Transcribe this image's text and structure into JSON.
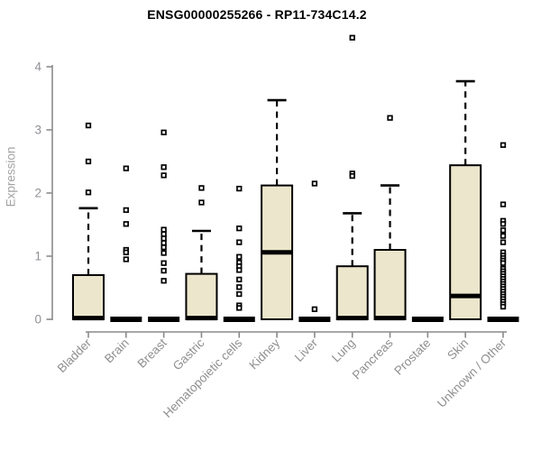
{
  "window": {
    "title": "ENSG00000255266 - RP11-734C14.2"
  },
  "chart_data": {
    "type": "boxplot",
    "title": "ENSG00000255266 - RP11-734C14.2",
    "xlabel": "",
    "ylabel": "Expression",
    "ylim": [
      0,
      4.6
    ],
    "yticks": [
      0,
      1,
      2,
      3,
      4
    ],
    "grid": false,
    "legend": "none",
    "categories": [
      "Bladder",
      "Brain",
      "Breast",
      "Gastric",
      "Hematopoietic cells",
      "Kidney",
      "Liver",
      "Lung",
      "Pancreas",
      "Prostate",
      "Skin",
      "Unknown / Other"
    ],
    "series": [
      {
        "name": "Bladder",
        "q1": 0,
        "median": 0.02,
        "q3": 0.7,
        "whisker_low": 0,
        "whisker_high": 1.76,
        "outliers": [
          2.01,
          2.5,
          3.07
        ]
      },
      {
        "name": "Brain",
        "q1": 0,
        "median": 0,
        "q3": 0,
        "whisker_low": 0,
        "whisker_high": 0,
        "outliers": [
          2.39,
          1.73,
          1.51,
          1.1,
          1.06,
          0.95
        ]
      },
      {
        "name": "Breast",
        "q1": 0,
        "median": 0,
        "q3": 0,
        "whisker_low": 0,
        "whisker_high": 0,
        "outliers": [
          2.96,
          2.41,
          2.28,
          1.42,
          1.35,
          1.28,
          1.21,
          1.14,
          1.05,
          0.89,
          0.77,
          0.61
        ]
      },
      {
        "name": "Gastric",
        "q1": 0,
        "median": 0.02,
        "q3": 0.72,
        "whisker_low": 0,
        "whisker_high": 1.4,
        "outliers": [
          2.08,
          1.85
        ]
      },
      {
        "name": "Hematopoietic cells",
        "q1": 0,
        "median": 0,
        "q3": 0,
        "whisker_low": 0,
        "whisker_high": 0,
        "outliers": [
          2.07,
          1.44,
          1.22,
          0.99,
          0.9,
          0.84,
          0.78,
          0.63,
          0.51,
          0.4,
          0.22,
          0.18
        ]
      },
      {
        "name": "Kidney",
        "q1": 0,
        "median": 1.06,
        "q3": 2.12,
        "whisker_low": 0,
        "whisker_high": 3.47,
        "outliers": []
      },
      {
        "name": "Liver",
        "q1": 0,
        "median": 0,
        "q3": 0,
        "whisker_low": 0,
        "whisker_high": 0,
        "outliers": [
          2.15,
          0.16
        ]
      },
      {
        "name": "Lung",
        "q1": 0,
        "median": 0.02,
        "q3": 0.84,
        "whisker_low": 0,
        "whisker_high": 1.68,
        "outliers": [
          4.46,
          2.31,
          2.27
        ]
      },
      {
        "name": "Pancreas",
        "q1": 0,
        "median": 0.02,
        "q3": 1.1,
        "whisker_low": 0,
        "whisker_high": 2.12,
        "outliers": [
          3.19
        ]
      },
      {
        "name": "Prostate",
        "q1": 0,
        "median": 0,
        "q3": 0,
        "whisker_low": 0,
        "whisker_high": 0,
        "outliers": []
      },
      {
        "name": "Skin",
        "q1": 0,
        "median": 0.37,
        "q3": 2.44,
        "whisker_low": 0,
        "whisker_high": 3.77,
        "outliers": []
      },
      {
        "name": "Unknown / Other",
        "q1": 0,
        "median": 0,
        "q3": 0,
        "whisker_low": 0,
        "whisker_high": 0,
        "outliers": [
          2.76,
          1.82,
          1.56,
          1.51,
          1.41,
          1.32,
          1.22,
          1.06,
          1.01,
          0.97,
          0.93,
          0.89,
          0.8,
          0.76,
          0.72,
          0.68,
          0.64,
          0.6,
          0.56,
          0.52,
          0.48,
          0.44,
          0.4,
          0.36,
          0.32,
          0.28,
          0.24,
          0.2
        ]
      }
    ],
    "style": {
      "box_fill": "#ece6cc",
      "box_border": "#000000",
      "median_color": "#000000",
      "whisker_style": "dashed",
      "outlier_shape": "open-square",
      "axis_color": "#8a8a8a",
      "tick_label_color": "#8f8f96",
      "category_label_color": "#8f8f8f",
      "title_color": "#000000",
      "background": "#ffffff"
    }
  }
}
